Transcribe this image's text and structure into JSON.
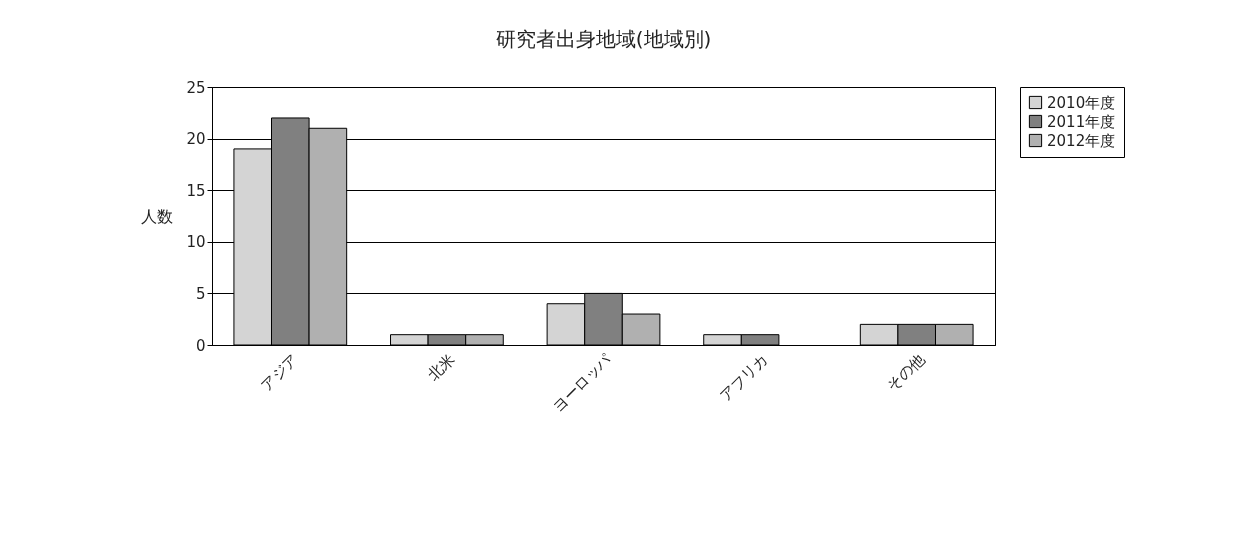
{
  "chart_data": {
    "type": "bar",
    "title": "研究者出身地域(地域別)",
    "ylabel": "人数",
    "categories": [
      "アジア",
      "北米",
      "ヨーロッパ",
      "アフリカ",
      "その他"
    ],
    "series": [
      {
        "name": "2010年度",
        "color": "#d4d4d4",
        "values": [
          19,
          1,
          4,
          1,
          2
        ]
      },
      {
        "name": "2011年度",
        "color": "#808080",
        "values": [
          22,
          1,
          5,
          1,
          2
        ]
      },
      {
        "name": "2012年度",
        "color": "#b0b0b0",
        "values": [
          21,
          1,
          3,
          null,
          2
        ]
      }
    ],
    "ylim": [
      0,
      25
    ],
    "yticks": [
      0,
      5,
      10,
      15,
      20,
      25
    ],
    "grid": "y",
    "legend": "right"
  }
}
